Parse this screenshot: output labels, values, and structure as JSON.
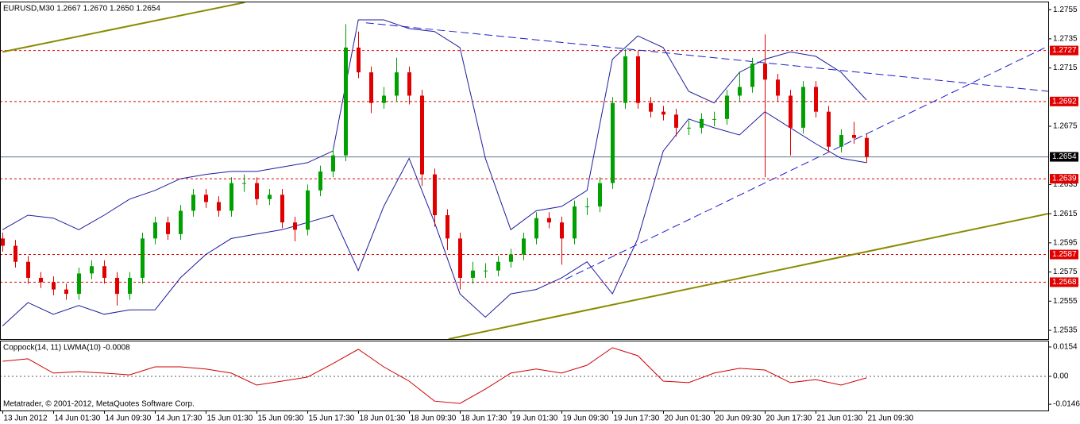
{
  "chart_data": [
    {
      "type": "candlestick",
      "title": "EURUSD,M30  1.2667 1.2670 1.2650 1.2654",
      "up_color": "#00a000",
      "down_color": "#e00000",
      "xlim": [
        -0.2,
        82.3
      ],
      "ylim": [
        1.2529,
        1.276
      ],
      "yticks": [
        1.2755,
        1.2735,
        1.2715,
        1.2675,
        1.2635,
        1.2615,
        1.2595,
        1.2575,
        1.2555,
        1.2535
      ],
      "ohlc": [
        [
          1.2598,
          1.2602,
          1.2589,
          1.2593
        ],
        [
          1.2593,
          1.2597,
          1.2578,
          1.2582
        ],
        [
          1.2582,
          1.2586,
          1.2567,
          1.2571
        ],
        [
          1.2571,
          1.2575,
          1.2564,
          1.2568
        ],
        [
          1.2568,
          1.2572,
          1.2559,
          1.2563
        ],
        [
          1.2563,
          1.2567,
          1.2556,
          1.256
        ],
        [
          1.256,
          1.2578,
          1.2556,
          1.2574
        ],
        [
          1.2574,
          1.2583,
          1.257,
          1.2579
        ],
        [
          1.2579,
          1.2583,
          1.2567,
          1.2571
        ],
        [
          1.2571,
          1.2575,
          1.2552,
          1.256
        ],
        [
          1.256,
          1.2575,
          1.2556,
          1.2571
        ],
        [
          1.2571,
          1.2602,
          1.2567,
          1.2598
        ],
        [
          1.2598,
          1.2613,
          1.2594,
          1.2609
        ],
        [
          1.2609,
          1.2613,
          1.2597,
          1.2601
        ],
        [
          1.2601,
          1.2621,
          1.2597,
          1.2617
        ],
        [
          1.2617,
          1.2632,
          1.2613,
          1.2628
        ],
        [
          1.2628,
          1.2632,
          1.2619,
          1.2623
        ],
        [
          1.2623,
          1.2627,
          1.2613,
          1.2617
        ],
        [
          1.2617,
          1.264,
          1.2613,
          1.2636
        ],
        [
          1.2636,
          1.2642,
          1.263,
          1.2636
        ],
        [
          1.2636,
          1.264,
          1.2621,
          1.2625
        ],
        [
          1.2625,
          1.2632,
          1.2621,
          1.2628
        ],
        [
          1.2628,
          1.2632,
          1.2605,
          1.2609
        ],
        [
          1.2609,
          1.2613,
          1.2596,
          1.2604
        ],
        [
          1.2604,
          1.2635,
          1.26,
          1.2631
        ],
        [
          1.2631,
          1.2648,
          1.2627,
          1.2644
        ],
        [
          1.2644,
          1.266,
          1.264,
          1.2655
        ],
        [
          1.2655,
          1.2745,
          1.2651,
          1.2729
        ],
        [
          1.2729,
          1.274,
          1.2708,
          1.2712
        ],
        [
          1.2712,
          1.2716,
          1.2684,
          1.2691
        ],
        [
          1.2691,
          1.2702,
          1.2687,
          1.2696
        ],
        [
          1.2696,
          1.2722,
          1.2692,
          1.2712
        ],
        [
          1.2712,
          1.2716,
          1.269,
          1.2696
        ],
        [
          1.2696,
          1.27,
          1.2634,
          1.2642
        ],
        [
          1.2642,
          1.2646,
          1.2606,
          1.2614
        ],
        [
          1.2614,
          1.2618,
          1.259,
          1.2598
        ],
        [
          1.2598,
          1.2602,
          1.2563,
          1.2571
        ],
        [
          1.2571,
          1.2582,
          1.2567,
          1.2576
        ],
        [
          1.2576,
          1.2581,
          1.2571,
          1.2576
        ],
        [
          1.2576,
          1.2586,
          1.2572,
          1.2582
        ],
        [
          1.2582,
          1.2591,
          1.2578,
          1.2587
        ],
        [
          1.2587,
          1.2602,
          1.2583,
          1.2598
        ],
        [
          1.2598,
          1.2616,
          1.2594,
          1.2612
        ],
        [
          1.2612,
          1.2616,
          1.2605,
          1.2609
        ],
        [
          1.2609,
          1.2613,
          1.258,
          1.2598
        ],
        [
          1.2598,
          1.2624,
          1.2594,
          1.262
        ],
        [
          1.262,
          1.2626,
          1.2614,
          1.262
        ],
        [
          1.262,
          1.264,
          1.2616,
          1.2636
        ],
        [
          1.2636,
          1.2695,
          1.2632,
          1.2691
        ],
        [
          1.2691,
          1.2728,
          1.2687,
          1.2723
        ],
        [
          1.2723,
          1.2727,
          1.2687,
          1.2691
        ],
        [
          1.2691,
          1.2695,
          1.2681,
          1.2685
        ],
        [
          1.2685,
          1.2689,
          1.2679,
          1.2683
        ],
        [
          1.2683,
          1.2687,
          1.2668,
          1.2674
        ],
        [
          1.2674,
          1.2679,
          1.2669,
          1.2674
        ],
        [
          1.2674,
          1.2684,
          1.267,
          1.268
        ],
        [
          1.268,
          1.2685,
          1.2675,
          1.268
        ],
        [
          1.268,
          1.27,
          1.2676,
          1.2696
        ],
        [
          1.2696,
          1.2712,
          1.2692,
          1.2702
        ],
        [
          1.2702,
          1.2722,
          1.2698,
          1.2718
        ],
        [
          1.2718,
          1.2738,
          1.264,
          1.2707
        ],
        [
          1.2707,
          1.2711,
          1.2692,
          1.2696
        ],
        [
          1.2696,
          1.27,
          1.2655,
          1.2674
        ],
        [
          1.2674,
          1.2706,
          1.267,
          1.2702
        ],
        [
          1.2702,
          1.2706,
          1.2681,
          1.2685
        ],
        [
          1.2685,
          1.2689,
          1.2657,
          1.2661
        ],
        [
          1.2661,
          1.2673,
          1.2657,
          1.2669
        ],
        [
          1.2669,
          1.2678,
          1.2663,
          1.2667
        ],
        [
          1.2667,
          1.267,
          1.265,
          1.2654
        ]
      ],
      "bollinger": {
        "color": "#1c1c9c",
        "x": [
          0,
          2,
          4,
          6,
          8,
          10,
          12,
          14,
          16,
          18,
          20,
          22,
          24,
          26,
          28,
          30,
          32,
          34,
          36,
          38,
          40,
          42,
          44,
          46,
          48,
          50,
          52,
          54,
          56,
          58,
          60,
          62,
          64,
          66,
          68
        ],
        "upper": [
          1.2604,
          1.2614,
          1.2612,
          1.2604,
          1.2614,
          1.2625,
          1.2631,
          1.2639,
          1.2642,
          1.2644,
          1.2644,
          1.2647,
          1.265,
          1.2658,
          1.2748,
          1.2748,
          1.2742,
          1.274,
          1.2729,
          1.2653,
          1.2604,
          1.2617,
          1.262,
          1.2631,
          1.2721,
          1.2737,
          1.2729,
          1.2699,
          1.2691,
          1.2712,
          1.2721,
          1.2726,
          1.2723,
          1.2712,
          1.2693
        ],
        "lower": [
          1.2538,
          1.2554,
          1.2546,
          1.2552,
          1.2546,
          1.2549,
          1.2549,
          1.2571,
          1.2587,
          1.2598,
          1.2601,
          1.2604,
          1.2609,
          1.2614,
          1.2576,
          1.262,
          1.2653,
          1.2609,
          1.256,
          1.2544,
          1.256,
          1.2563,
          1.2571,
          1.2582,
          1.256,
          1.2598,
          1.2658,
          1.268,
          1.2674,
          1.2669,
          1.2685,
          1.2674,
          1.2663,
          1.2653,
          1.265
        ]
      },
      "trendlines": [
        {
          "x": [
            0,
            19.06
          ],
          "y": [
            1.2726,
            1.276
          ],
          "color": "#8b8b00",
          "dashed": false
        },
        {
          "x": [
            35.1,
            82.3
          ],
          "y": [
            1.2529,
            1.2615
          ],
          "color": "#8b8b00",
          "dashed": false
        },
        {
          "x": [
            28.6,
            82.3
          ],
          "y": [
            1.2746,
            1.2699
          ],
          "color": "#1c1ccc",
          "dashed": true
        },
        {
          "x": [
            44.3,
            82.3
          ],
          "y": [
            1.257,
            1.273
          ],
          "color": "#1c1ccc",
          "dashed": true
        }
      ],
      "levels": [
        1.2727,
        1.2692,
        1.2639,
        1.2587,
        1.2568
      ],
      "level_color": "#e00000",
      "current": 1.2654,
      "current_color": "#607090"
    },
    {
      "type": "line",
      "title": "Coppock(14, 11) LWMA(10) -0.0008",
      "color": "#d00000",
      "watermark": "Metatrader, © 2001-2012, MetaQuotes Software Corp.",
      "xlim": [
        -0.2,
        82.3
      ],
      "ylim": [
        -0.0179,
        0.0183
      ],
      "yticks": [
        0.0154,
        {
          "value": 0,
          "label": "0.00"
        },
        -0.0146
      ],
      "xticks": [
        {
          "value": 0,
          "label": "13 Jun 2012"
        },
        {
          "value": 4,
          "label": "14 Jun 01:30"
        },
        {
          "value": 8,
          "label": "14 Jun 09:30"
        },
        {
          "value": 12,
          "label": "14 Jun 17:30"
        },
        {
          "value": 16,
          "label": "15 Jun 01:30"
        },
        {
          "value": 20,
          "label": "15 Jun 09:30"
        },
        {
          "value": 24,
          "label": "15 Jun 17:30"
        },
        {
          "value": 28,
          "label": "18 Jun 01:30"
        },
        {
          "value": 32,
          "label": "18 Jun 09:30"
        },
        {
          "value": 36,
          "label": "18 Jun 17:30"
        },
        {
          "value": 40,
          "label": "19 Jun 01:30"
        },
        {
          "value": 44,
          "label": "19 Jun 09:30"
        },
        {
          "value": 48,
          "label": "19 Jun 17:30"
        },
        {
          "value": 52,
          "label": "20 Jun 01:30"
        },
        {
          "value": 56,
          "label": "20 Jun 09:30"
        },
        {
          "value": 60,
          "label": "20 Jun 17:30"
        },
        {
          "value": 64,
          "label": "21 Jun 01:30"
        },
        {
          "value": 68,
          "label": "21 Jun 09:30"
        }
      ],
      "x": [
        0,
        2,
        4,
        6,
        8,
        10,
        12,
        14,
        16,
        18,
        20,
        22,
        24,
        26,
        28,
        30,
        32,
        34,
        36,
        38,
        40,
        42,
        44,
        46,
        48,
        50,
        52,
        54,
        56,
        58,
        60,
        62,
        64,
        66,
        68
      ],
      "values": [
        0.0079,
        0.0092,
        0.0017,
        0.0025,
        0.0017,
        0.0008,
        0.005,
        0.005,
        0.0038,
        0.0017,
        -0.0046,
        -0.0025,
        -0.0004,
        0.0067,
        0.0142,
        0.005,
        -0.0025,
        -0.013,
        -0.0142,
        -0.0067,
        0.0017,
        0.0038,
        0.0017,
        0.0058,
        0.015,
        0.0108,
        -0.0025,
        -0.0033,
        0.0017,
        0.0042,
        0.0033,
        -0.0033,
        -0.0017,
        -0.0046,
        -0.0008
      ]
    }
  ]
}
